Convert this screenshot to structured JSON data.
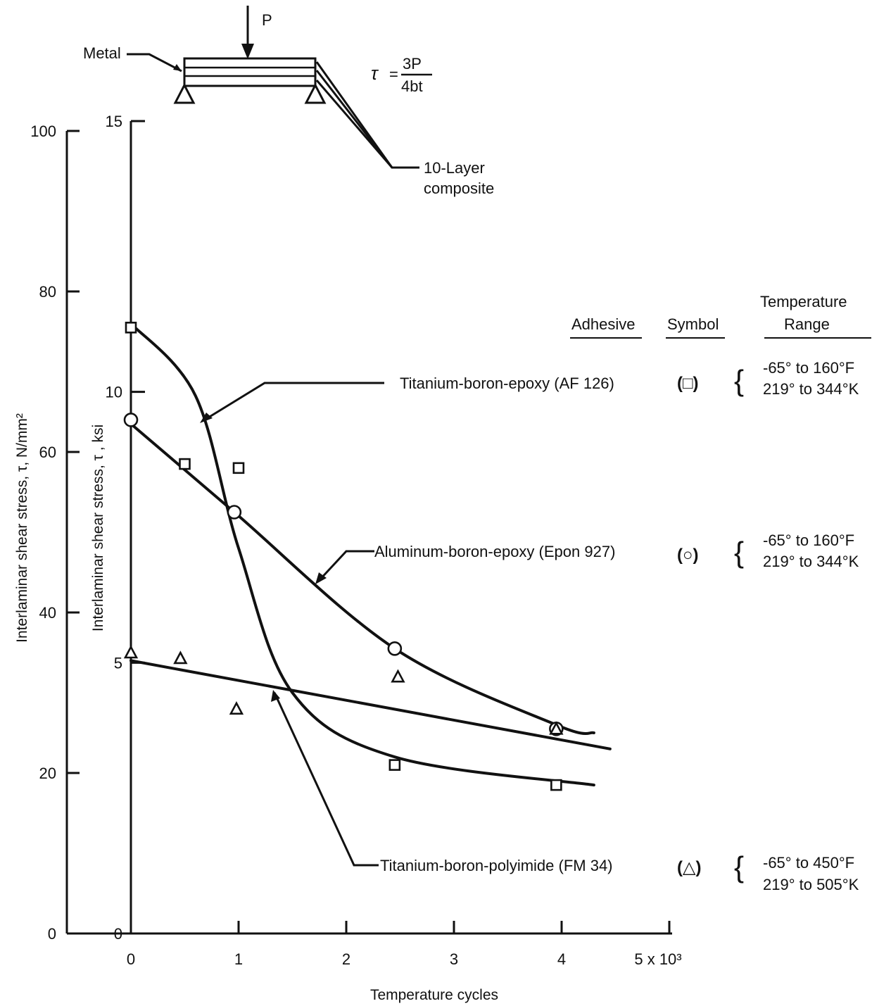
{
  "diagram": {
    "load_label": "P",
    "metal_label": "Metal",
    "composite_label_line1": "10-Layer",
    "composite_label_line2": "composite",
    "formula_lhs": "τ",
    "formula_eq": "=",
    "formula_num": "3P",
    "formula_den": "4bt"
  },
  "table": {
    "header_adhesive": "Adhesive",
    "header_symbol": "Symbol",
    "header_range_line1": "Temperature",
    "header_range_line2": "Range",
    "rows": [
      {
        "label": "Titanium-boron-epoxy (AF 126)",
        "symbol": "(□)",
        "range_f": "-65° to 160°F",
        "range_k": "219° to 344°K"
      },
      {
        "label": "Aluminum-boron-epoxy (Epon 927)",
        "symbol": "(○)",
        "range_f": "-65° to 160°F",
        "range_k": "219° to 344°K"
      },
      {
        "label": "Titanium-boron-polyimide (FM 34)",
        "symbol": "(△)",
        "range_f": "-65° to 450°F",
        "range_k": "219° to 505°K"
      }
    ]
  },
  "chart_data": {
    "type": "scatter",
    "title": "",
    "xlabel": "Temperature cycles",
    "ylabel": "Interlaminar shear stress, τ, N/mm²",
    "ylabel2": "Interlaminar shear stress, τ , ksi",
    "xlim": [
      0,
      5000
    ],
    "ylim": [
      0,
      100
    ],
    "ylim2": [
      0,
      15
    ],
    "x_ticks": [
      "0",
      "1",
      "2",
      "3",
      "4",
      "5 x 10³"
    ],
    "y_ticks": [
      "0",
      "20",
      "40",
      "60",
      "80",
      "100"
    ],
    "y2_ticks": [
      "0",
      "5",
      "10",
      "15"
    ],
    "series": [
      {
        "name": "Titanium-boron-epoxy (AF 126)",
        "marker": "square",
        "points": [
          [
            0,
            75.5
          ],
          [
            500,
            58.5
          ],
          [
            1000,
            58.0
          ],
          [
            2450,
            21.0
          ],
          [
            3950,
            18.5
          ]
        ],
        "curve": [
          [
            0,
            76
          ],
          [
            600,
            67
          ],
          [
            1000,
            48
          ],
          [
            1500,
            30
          ],
          [
            2450,
            22
          ],
          [
            4300,
            18.5
          ]
        ]
      },
      {
        "name": "Aluminum-boron-epoxy (Epon 927)",
        "marker": "circle",
        "points": [
          [
            0,
            64.0
          ],
          [
            960,
            52.5
          ],
          [
            2450,
            35.5
          ],
          [
            3950,
            25.5
          ]
        ],
        "curve": [
          [
            0,
            63.5
          ],
          [
            960,
            52.5
          ],
          [
            2450,
            35.5
          ],
          [
            3950,
            26.0
          ],
          [
            4300,
            25.0
          ]
        ]
      },
      {
        "name": "Titanium-boron-polyimide (FM 34)",
        "marker": "triangle",
        "points": [
          [
            0,
            35.0
          ],
          [
            460,
            34.3
          ],
          [
            980,
            28.0
          ],
          [
            2480,
            32.0
          ],
          [
            3950,
            25.5
          ]
        ],
        "curve": [
          [
            0,
            34.0
          ],
          [
            4450,
            23.0
          ]
        ]
      }
    ]
  }
}
